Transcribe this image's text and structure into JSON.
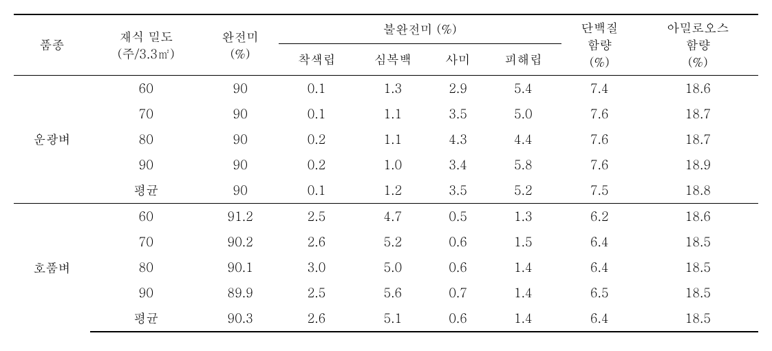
{
  "headers": {
    "variety": "품종",
    "density_line1": "재식 밀도",
    "density_line2": "(주/3.3㎡)",
    "complete_line1": "완전미",
    "complete_line2": "(%)",
    "incomplete_group": "불완전미 (%)",
    "colored": "착색립",
    "chalky": "심복백",
    "dead": "사미",
    "damaged": "피해립",
    "protein_line1": "단백질",
    "protein_line2": "함량",
    "protein_line3": "(%)",
    "amylose_line1": "아밀로오스",
    "amylose_line2": "함량",
    "amylose_line3": "(%)"
  },
  "varieties": [
    {
      "name": "운광벼",
      "rows": [
        {
          "density": "60",
          "complete": "90",
          "colored": "0.1",
          "chalky": "1.3",
          "dead": "2.9",
          "damaged": "5.4",
          "protein": "7.4",
          "amylose": "18.6"
        },
        {
          "density": "70",
          "complete": "90",
          "colored": "0.1",
          "chalky": "1.1",
          "dead": "3.5",
          "damaged": "5.0",
          "protein": "7.6",
          "amylose": "18.7"
        },
        {
          "density": "80",
          "complete": "90",
          "colored": "0.2",
          "chalky": "1.1",
          "dead": "4.3",
          "damaged": "4.4",
          "protein": "7.6",
          "amylose": "18.7"
        },
        {
          "density": "90",
          "complete": "90",
          "colored": "0.2",
          "chalky": "1.0",
          "dead": "3.4",
          "damaged": "5.8",
          "protein": "7.6",
          "amylose": "18.9"
        },
        {
          "density": "평균",
          "complete": "90",
          "colored": "0.1",
          "chalky": "1.2",
          "dead": "3.5",
          "damaged": "5.2",
          "protein": "7.5",
          "amylose": "18.8"
        }
      ]
    },
    {
      "name": "호품벼",
      "rows": [
        {
          "density": "60",
          "complete": "91.2",
          "colored": "2.5",
          "chalky": "4.7",
          "dead": "0.5",
          "damaged": "1.3",
          "protein": "6.2",
          "amylose": "18.6"
        },
        {
          "density": "70",
          "complete": "90.2",
          "colored": "2.6",
          "chalky": "5.2",
          "dead": "0.6",
          "damaged": "1.5",
          "protein": "6.4",
          "amylose": "18.5"
        },
        {
          "density": "80",
          "complete": "90.1",
          "colored": "3.0",
          "chalky": "5.0",
          "dead": "0.6",
          "damaged": "1.4",
          "protein": "6.4",
          "amylose": "18.5"
        },
        {
          "density": "90",
          "complete": "89.9",
          "colored": "2.5",
          "chalky": "5.6",
          "dead": "0.7",
          "damaged": "1.4",
          "protein": "6.5",
          "amylose": "18.5"
        },
        {
          "density": "평균",
          "complete": "90.3",
          "colored": "2.6",
          "chalky": "5.1",
          "dead": "0.6",
          "damaged": "1.4",
          "protein": "6.4",
          "amylose": "18.5"
        }
      ]
    }
  ]
}
